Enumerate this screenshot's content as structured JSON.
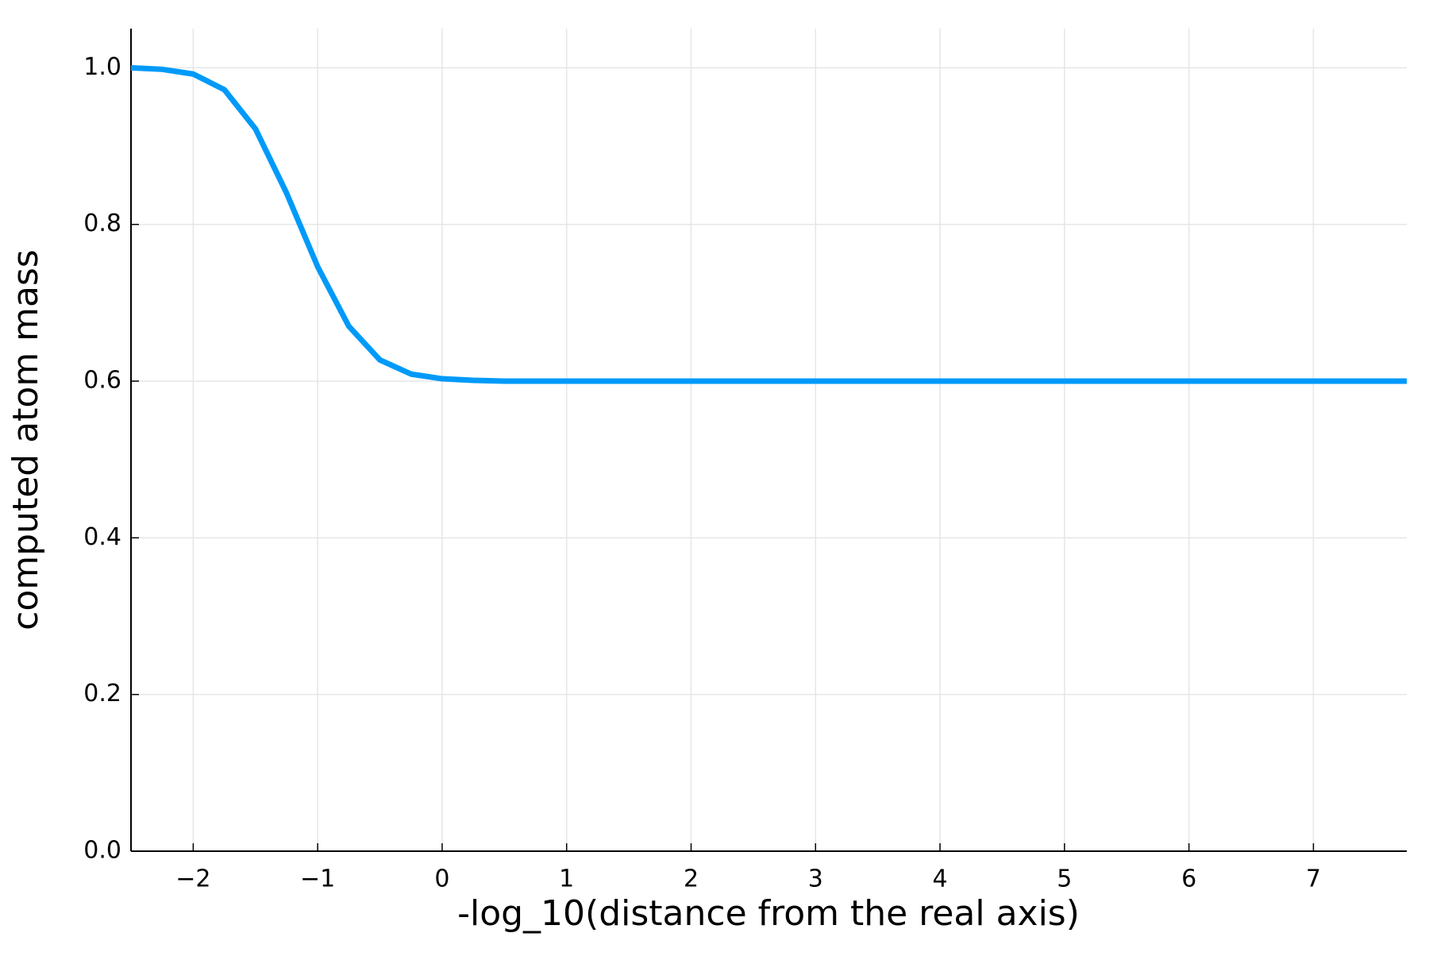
{
  "chart_data": {
    "type": "line",
    "x_label": "-log_10(distance from the real axis)",
    "y_label": "computed atom mass",
    "x": [
      -2.5,
      -2.25,
      -2.0,
      -1.75,
      -1.5,
      -1.25,
      -1.0,
      -0.75,
      -0.5,
      -0.25,
      0.0,
      0.25,
      0.5,
      1.0,
      2.0,
      3.0,
      4.0,
      5.0,
      6.0,
      7.0,
      7.75
    ],
    "series": [
      {
        "color": "#009af9",
        "values": [
          1.0,
          0.998,
          0.992,
          0.972,
          0.922,
          0.84,
          0.746,
          0.67,
          0.627,
          0.609,
          0.603,
          0.601,
          0.6,
          0.6,
          0.6,
          0.6,
          0.6,
          0.6,
          0.6,
          0.6,
          0.6
        ]
      }
    ],
    "xlim": [
      -2.5,
      7.75
    ],
    "ylim": [
      0,
      1.05
    ],
    "xticks": [
      {
        "value": -2,
        "label": "−2"
      },
      {
        "value": -1,
        "label": "−1"
      },
      0,
      1,
      2,
      3,
      4,
      5,
      6,
      7
    ],
    "yticks": [
      {
        "value": 0,
        "label": "0.0"
      },
      0.2,
      0.4,
      0.6,
      0.8,
      {
        "value": 1,
        "label": "1.0"
      }
    ],
    "grid": true
  }
}
